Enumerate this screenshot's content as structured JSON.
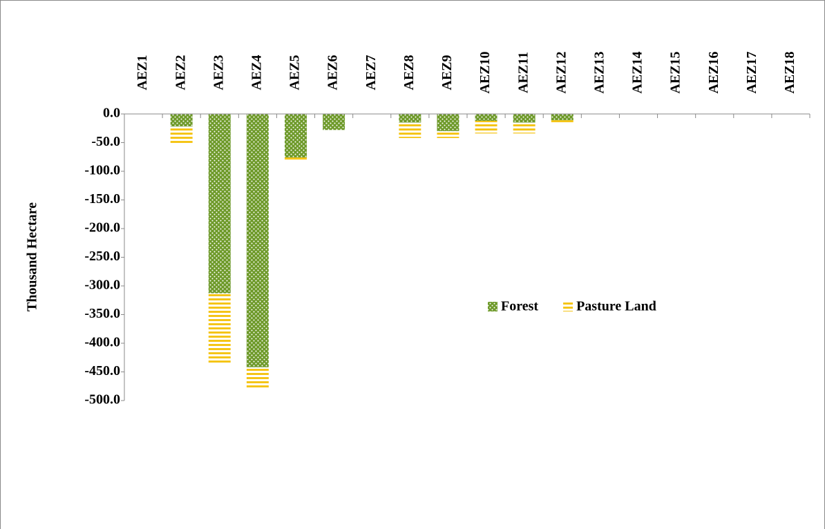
{
  "chart_data": {
    "type": "stacked-bar",
    "y_label": "Thousand Hectare",
    "categories": [
      "AEZ1",
      "AEZ2",
      "AEZ3",
      "AEZ4",
      "AEZ5",
      "AEZ6",
      "AEZ7",
      "AEZ8",
      "AEZ9",
      "AEZ10",
      "AEZ11",
      "AEZ12",
      "AEZ13",
      "AEZ14",
      "AEZ15",
      "AEZ16",
      "AEZ17",
      "AEZ18"
    ],
    "series": [
      {
        "name": "Forest",
        "color": "#6e9a2a",
        "values": [
          0,
          -22,
          -313,
          -442,
          -76,
          -28,
          0,
          -15,
          -30,
          -12,
          -15,
          -11,
          0,
          0,
          0,
          0,
          0,
          0
        ]
      },
      {
        "name": "Pasture Land",
        "color": "#f5c518",
        "values": [
          0,
          -30,
          -123,
          -36,
          -4,
          0,
          -3,
          -27,
          -12,
          -22,
          -19,
          -5,
          0,
          0,
          0,
          0,
          0,
          0
        ]
      }
    ],
    "ylim": [
      -500,
      0
    ],
    "yticks": [
      {
        "value": 0,
        "label": "0.0"
      },
      {
        "value": -50,
        "label": "-50.0"
      },
      {
        "value": -100,
        "label": "-100.0"
      },
      {
        "value": -150,
        "label": "-150.0"
      },
      {
        "value": -200,
        "label": "-200.0"
      },
      {
        "value": -250,
        "label": "-250.0"
      },
      {
        "value": -300,
        "label": "-300.0"
      },
      {
        "value": -350,
        "label": "-350.0"
      },
      {
        "value": -400,
        "label": "-400.0"
      },
      {
        "value": -450,
        "label": "-450.0"
      },
      {
        "value": -500,
        "label": "-500.0"
      }
    ],
    "legend": "right"
  }
}
